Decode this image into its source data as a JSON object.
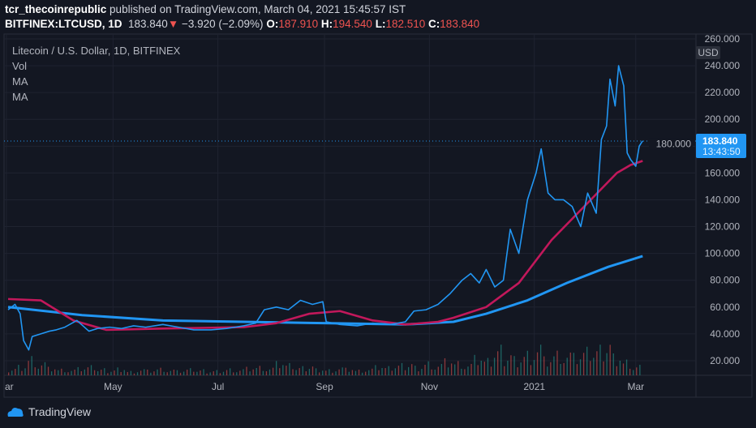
{
  "header": {
    "publisher": "tcr_thecoinrepublic",
    "published_text": "published on TradingView.com, March 04, 2021 15:45:57 IST",
    "symbol": "BITFINEX:LTCUSD, 1D",
    "last": "183.840",
    "change": "−3.920 (−2.09%)",
    "o_label": "O:",
    "o": "187.910",
    "h_label": "H:",
    "h": "194.540",
    "l_label": "L:",
    "l": "182.510",
    "c_label": "C:",
    "c": "183.840"
  },
  "legend": {
    "title": "Litecoin / U.S. Dollar, 1D, BITFINEX",
    "items": [
      "Vol",
      "MA",
      "MA"
    ]
  },
  "footer": {
    "brand": "TradingView"
  },
  "chart_data": {
    "type": "line",
    "currency": "USD",
    "ylim": [
      12,
      266
    ],
    "y_ticks": [
      "260.000",
      "240.000",
      "220.000",
      "200.000",
      "180.000",
      "160.000",
      "140.000",
      "120.000",
      "100.000",
      "80.000",
      "60.000",
      "40.000",
      "20.000"
    ],
    "y_tick_values": [
      260,
      240,
      220,
      200,
      180,
      160,
      140,
      120,
      100,
      80,
      60,
      40,
      20
    ],
    "x_ticks": [
      {
        "label": "ar",
        "day": -1
      },
      {
        "label": "May",
        "day": 61
      },
      {
        "label": "Jul",
        "day": 122
      },
      {
        "label": "Sep",
        "day": 184
      },
      {
        "label": "Nov",
        "day": 245
      },
      {
        "label": "2021",
        "day": 306
      },
      {
        "label": "Mar",
        "day": 365
      }
    ],
    "xlim": [
      -1,
      400
    ],
    "last_price_label": "183.840",
    "countdown": "13:43:50",
    "last_price": 183.84,
    "colors": {
      "price": "#2196f3",
      "ma50": "#c2185b",
      "ma200": "#2196f3",
      "vol_up": "#26a69a",
      "vol_down": "#ef5350"
    },
    "price": [
      [
        0,
        58
      ],
      [
        4,
        62
      ],
      [
        7,
        55
      ],
      [
        9,
        35
      ],
      [
        12,
        28
      ],
      [
        14,
        38
      ],
      [
        19,
        40
      ],
      [
        24,
        42
      ],
      [
        28,
        43
      ],
      [
        33,
        45
      ],
      [
        40,
        50
      ],
      [
        47,
        42
      ],
      [
        52,
        44
      ],
      [
        59,
        45
      ],
      [
        66,
        44
      ],
      [
        73,
        46
      ],
      [
        80,
        45
      ],
      [
        90,
        47
      ],
      [
        99,
        45
      ],
      [
        108,
        43
      ],
      [
        118,
        43
      ],
      [
        127,
        44
      ],
      [
        137,
        46
      ],
      [
        144,
        48
      ],
      [
        149,
        58
      ],
      [
        156,
        60
      ],
      [
        163,
        58
      ],
      [
        170,
        65
      ],
      [
        177,
        62
      ],
      [
        183,
        64
      ],
      [
        185,
        49
      ],
      [
        193,
        47
      ],
      [
        203,
        46
      ],
      [
        212,
        48
      ],
      [
        222,
        47
      ],
      [
        231,
        49
      ],
      [
        236,
        57
      ],
      [
        243,
        58
      ],
      [
        250,
        62
      ],
      [
        257,
        70
      ],
      [
        264,
        80
      ],
      [
        269,
        85
      ],
      [
        274,
        78
      ],
      [
        278,
        88
      ],
      [
        283,
        75
      ],
      [
        288,
        80
      ],
      [
        292,
        118
      ],
      [
        297,
        100
      ],
      [
        302,
        140
      ],
      [
        307,
        160
      ],
      [
        310,
        178
      ],
      [
        314,
        145
      ],
      [
        318,
        140
      ],
      [
        323,
        140
      ],
      [
        328,
        135
      ],
      [
        333,
        120
      ],
      [
        337,
        145
      ],
      [
        342,
        130
      ],
      [
        345,
        185
      ],
      [
        348,
        195
      ],
      [
        350,
        230
      ],
      [
        353,
        210
      ],
      [
        355,
        240
      ],
      [
        358,
        225
      ],
      [
        360,
        175
      ],
      [
        362,
        170
      ],
      [
        365,
        165
      ],
      [
        367,
        180
      ],
      [
        369,
        184
      ]
    ],
    "ma50": [
      [
        0,
        66
      ],
      [
        19,
        65
      ],
      [
        38,
        50
      ],
      [
        57,
        43
      ],
      [
        90,
        44
      ],
      [
        137,
        45
      ],
      [
        156,
        48
      ],
      [
        175,
        55
      ],
      [
        193,
        57
      ],
      [
        212,
        50
      ],
      [
        231,
        47
      ],
      [
        250,
        49
      ],
      [
        259,
        52
      ],
      [
        278,
        60
      ],
      [
        297,
        78
      ],
      [
        316,
        110
      ],
      [
        335,
        135
      ],
      [
        354,
        160
      ],
      [
        362,
        166
      ],
      [
        369,
        169
      ]
    ],
    "ma200": [
      [
        0,
        60
      ],
      [
        43,
        54
      ],
      [
        90,
        50
      ],
      [
        137,
        49
      ],
      [
        184,
        48
      ],
      [
        231,
        47
      ],
      [
        259,
        49
      ],
      [
        278,
        55
      ],
      [
        302,
        65
      ],
      [
        325,
        78
      ],
      [
        349,
        90
      ],
      [
        369,
        98
      ]
    ],
    "volume": [
      8,
      12,
      22,
      15,
      9,
      7,
      6,
      8,
      10,
      7,
      6,
      9,
      5,
      7,
      6,
      8,
      6,
      5,
      7,
      6,
      5,
      6,
      8,
      7,
      9,
      10,
      8,
      14,
      12,
      9,
      11,
      8,
      7,
      9,
      8,
      6,
      7,
      10,
      9,
      12,
      14,
      11,
      16,
      13,
      18,
      15,
      12,
      20,
      17,
      30,
      25,
      22,
      28,
      35,
      20,
      26,
      24,
      22,
      28,
      30,
      38,
      25,
      18,
      12
    ],
    "volume_max": 100
  }
}
